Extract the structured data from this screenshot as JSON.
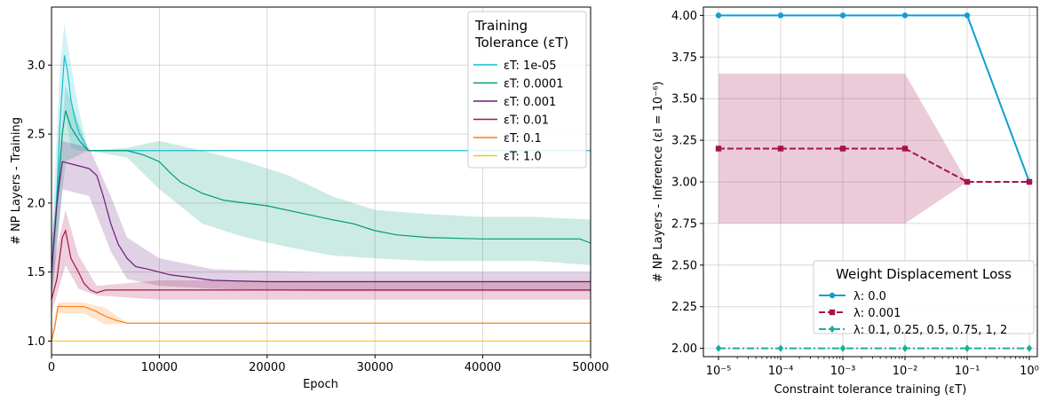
{
  "chart_data": [
    {
      "type": "line",
      "xlabel": "Epoch",
      "ylabel": "# NP Layers - Training",
      "xlim": [
        0,
        50000
      ],
      "ylim": [
        0.9,
        3.42
      ],
      "xticks": [
        "0",
        "10000",
        "20000",
        "30000",
        "40000",
        "50000"
      ],
      "yticks": [
        "1.0",
        "1.5",
        "2.0",
        "2.5",
        "3.0"
      ],
      "grid": true,
      "legend": {
        "title_line1": "Training",
        "title_line2": "Tolerance (εT)",
        "placement": "top-right"
      },
      "series": [
        {
          "name": "εT: 1e-05",
          "color": "#17becf",
          "line": [
            [
              0,
              1.5
            ],
            [
              400,
              1.9
            ],
            [
              800,
              2.6
            ],
            [
              1200,
              3.07
            ],
            [
              1500,
              2.95
            ],
            [
              1800,
              2.75
            ],
            [
              2200,
              2.6
            ],
            [
              2600,
              2.5
            ],
            [
              3000,
              2.45
            ],
            [
              3400,
              2.38
            ],
            [
              50000,
              2.38
            ]
          ],
          "band": [
            [
              0,
              1.3,
              1.7
            ],
            [
              800,
              2.2,
              3.0
            ],
            [
              1200,
              2.7,
              3.3
            ],
            [
              1800,
              2.4,
              3.0
            ],
            [
              2600,
              2.38,
              2.65
            ],
            [
              3400,
              2.38,
              2.38
            ],
            [
              50000,
              2.38,
              2.38
            ]
          ]
        },
        {
          "name": "εT: 0.0001",
          "color": "#009b77",
          "line": [
            [
              0,
              1.5
            ],
            [
              500,
              2.0
            ],
            [
              1000,
              2.5
            ],
            [
              1300,
              2.67
            ],
            [
              1800,
              2.55
            ],
            [
              2600,
              2.45
            ],
            [
              3400,
              2.38
            ],
            [
              7000,
              2.38
            ],
            [
              8500,
              2.35
            ],
            [
              10000,
              2.3
            ],
            [
              11000,
              2.22
            ],
            [
              12000,
              2.15
            ],
            [
              14000,
              2.07
            ],
            [
              16000,
              2.02
            ],
            [
              18000,
              2.0
            ],
            [
              20000,
              1.98
            ],
            [
              23000,
              1.93
            ],
            [
              26000,
              1.88
            ],
            [
              28000,
              1.85
            ],
            [
              30000,
              1.8
            ],
            [
              32000,
              1.77
            ],
            [
              35000,
              1.75
            ],
            [
              40000,
              1.74
            ],
            [
              45000,
              1.74
            ],
            [
              49000,
              1.74
            ],
            [
              50000,
              1.71
            ]
          ],
          "band": [
            [
              0,
              1.3,
              1.7
            ],
            [
              1300,
              2.3,
              2.85
            ],
            [
              3400,
              2.38,
              2.38
            ],
            [
              7000,
              2.33,
              2.4
            ],
            [
              10000,
              2.1,
              2.45
            ],
            [
              14000,
              1.85,
              2.38
            ],
            [
              18000,
              1.75,
              2.3
            ],
            [
              22000,
              1.68,
              2.2
            ],
            [
              26000,
              1.62,
              2.05
            ],
            [
              30000,
              1.6,
              1.95
            ],
            [
              35000,
              1.58,
              1.92
            ],
            [
              40000,
              1.58,
              1.9
            ],
            [
              45000,
              1.58,
              1.9
            ],
            [
              50000,
              1.55,
              1.88
            ]
          ]
        },
        {
          "name": "εT: 0.001",
          "color": "#6a1b7a",
          "line": [
            [
              0,
              1.5
            ],
            [
              500,
              2.0
            ],
            [
              1000,
              2.3
            ],
            [
              2500,
              2.27
            ],
            [
              3500,
              2.25
            ],
            [
              4200,
              2.2
            ],
            [
              4800,
              2.05
            ],
            [
              5500,
              1.85
            ],
            [
              6200,
              1.7
            ],
            [
              7000,
              1.6
            ],
            [
              7800,
              1.54
            ],
            [
              9000,
              1.52
            ],
            [
              11000,
              1.48
            ],
            [
              13000,
              1.46
            ],
            [
              15000,
              1.44
            ],
            [
              20000,
              1.43
            ],
            [
              30000,
              1.43
            ],
            [
              40000,
              1.43
            ],
            [
              50000,
              1.43
            ]
          ],
          "band": [
            [
              0,
              1.3,
              1.7
            ],
            [
              1000,
              2.1,
              2.45
            ],
            [
              3500,
              2.05,
              2.4
            ],
            [
              5500,
              1.65,
              2.05
            ],
            [
              7000,
              1.45,
              1.75
            ],
            [
              10000,
              1.4,
              1.6
            ],
            [
              15000,
              1.38,
              1.52
            ],
            [
              25000,
              1.36,
              1.5
            ],
            [
              50000,
              1.36,
              1.5
            ]
          ]
        },
        {
          "name": "εT: 0.01",
          "color": "#a6124e",
          "line": [
            [
              0,
              1.3
            ],
            [
              500,
              1.45
            ],
            [
              1000,
              1.75
            ],
            [
              1300,
              1.8
            ],
            [
              1800,
              1.6
            ],
            [
              2500,
              1.5
            ],
            [
              3000,
              1.42
            ],
            [
              3600,
              1.37
            ],
            [
              4200,
              1.35
            ],
            [
              5000,
              1.37
            ],
            [
              50000,
              1.37
            ]
          ],
          "band": [
            [
              0,
              1.2,
              1.5
            ],
            [
              1300,
              1.55,
              1.95
            ],
            [
              2500,
              1.38,
              1.62
            ],
            [
              4200,
              1.33,
              1.4
            ],
            [
              10000,
              1.3,
              1.44
            ],
            [
              50000,
              1.3,
              1.44
            ]
          ]
        },
        {
          "name": "εT: 0.1",
          "color": "#ff7f0e",
          "line": [
            [
              0,
              1.0
            ],
            [
              300,
              1.1
            ],
            [
              600,
              1.25
            ],
            [
              3000,
              1.25
            ],
            [
              4000,
              1.22
            ],
            [
              5000,
              1.18
            ],
            [
              6000,
              1.15
            ],
            [
              7000,
              1.13
            ],
            [
              50000,
              1.13
            ]
          ],
          "band": [
            [
              0,
              1.0,
              1.05
            ],
            [
              600,
              1.2,
              1.28
            ],
            [
              3000,
              1.2,
              1.28
            ],
            [
              5000,
              1.12,
              1.24
            ],
            [
              7000,
              1.13,
              1.13
            ],
            [
              50000,
              1.13,
              1.13
            ]
          ]
        },
        {
          "name": "εT: 1.0",
          "color": "#f5c518",
          "line": [
            [
              0,
              1.0
            ],
            [
              50000,
              1.0
            ]
          ],
          "band": []
        }
      ]
    },
    {
      "type": "line",
      "xlabel": "Constraint tolerance training (εT)",
      "ylabel": "# NP Layers - Inference (εI = 10⁻⁶)",
      "x": [
        1e-05,
        0.0001,
        0.001,
        0.01,
        0.1,
        1
      ],
      "xscale": "log",
      "xticks": [
        "10⁻⁵",
        "10⁻⁴",
        "10⁻³",
        "10⁻²",
        "10⁻¹",
        "10⁰"
      ],
      "ylim": [
        1.95,
        4.05
      ],
      "yticks": [
        "2.00",
        "2.25",
        "2.50",
        "2.75",
        "3.00",
        "3.25",
        "3.50",
        "3.75",
        "4.00"
      ],
      "grid": true,
      "legend": {
        "title": "Weight Displacement Loss",
        "placement": "bottom-right"
      },
      "series": [
        {
          "name": "λ: 0.0",
          "color": "#0f9ed5",
          "dash": "solid",
          "marker": "circle",
          "values": [
            4.0,
            4.0,
            4.0,
            4.0,
            4.0,
            3.0
          ]
        },
        {
          "name": "λ: 0.001",
          "color": "#a6124e",
          "dash": "dashed",
          "marker": "square",
          "values": [
            3.2,
            3.2,
            3.2,
            3.2,
            3.0,
            3.0
          ],
          "band_low": [
            2.75,
            2.75,
            2.75,
            2.75,
            3.0,
            3.0
          ],
          "band_high": [
            3.65,
            3.65,
            3.65,
            3.65,
            3.0,
            3.0
          ]
        },
        {
          "name": "λ: 0.1, 0.25, 0.5, 0.75, 1, 2",
          "color": "#19ae9c",
          "dash": "dashdot",
          "marker": "diamond",
          "values": [
            2.0,
            2.0,
            2.0,
            2.0,
            2.0,
            2.0
          ]
        }
      ]
    }
  ]
}
